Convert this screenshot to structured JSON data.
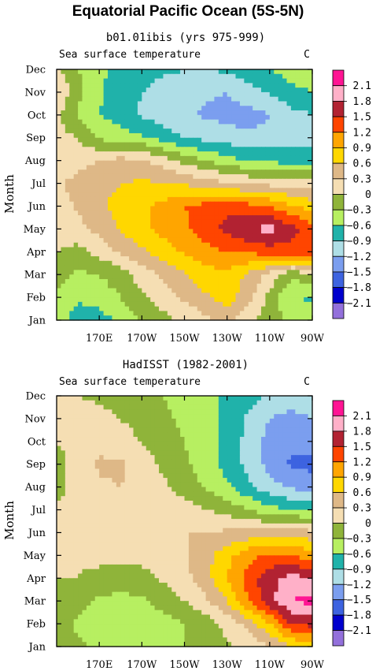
{
  "figure": {
    "title": "Equatorial Pacific Ocean (5S-5N)"
  },
  "chart_data": [
    {
      "type": "heatmap",
      "title": "b01.01ibis (yrs 975-999)",
      "variable": "Sea surface temperature",
      "units": "C",
      "ylabel": "Month",
      "xlabel": "",
      "x_ticks": [
        "170E",
        "170W",
        "150W",
        "130W",
        "110W",
        "90W"
      ],
      "x_tick_lon": [
        170,
        190,
        210,
        230,
        250,
        270
      ],
      "xlim": [
        150,
        270
      ],
      "y_ticks": [
        "Jan",
        "Feb",
        "Mar",
        "Apr",
        "May",
        "Jun",
        "Jul",
        "Aug",
        "Sep",
        "Oct",
        "Nov",
        "Dec"
      ],
      "lon": [
        150,
        160,
        170,
        180,
        190,
        200,
        210,
        220,
        230,
        240,
        250,
        260,
        270
      ],
      "z": [
        [
          -0.45,
          -0.75,
          -0.75,
          -0.5,
          -0.3,
          -0.1,
          0.05,
          0.25,
          0.4,
          0.1,
          -0.2,
          -0.35,
          -0.4
        ],
        [
          -0.35,
          -0.55,
          -0.45,
          -0.3,
          -0.05,
          0.15,
          0.35,
          0.55,
          0.75,
          0.4,
          -0.1,
          -0.6,
          -0.65
        ],
        [
          -0.2,
          -0.35,
          -0.3,
          -0.15,
          0.15,
          0.35,
          0.55,
          0.8,
          0.8,
          0.55,
          0.2,
          -0.2,
          -0.1
        ],
        [
          0.0,
          -0.1,
          0.1,
          0.35,
          0.55,
          0.75,
          0.95,
          1.1,
          1.2,
          1.25,
          1.35,
          1.4,
          1.45
        ],
        [
          0.1,
          0.2,
          0.4,
          0.65,
          0.85,
          1.0,
          1.15,
          1.35,
          1.6,
          1.8,
          1.9,
          1.6,
          1.3
        ],
        [
          0.15,
          0.35,
          0.55,
          0.7,
          0.85,
          1.0,
          1.2,
          1.3,
          1.4,
          1.3,
          1.2,
          0.95,
          0.75
        ],
        [
          0.25,
          0.4,
          0.5,
          0.6,
          0.65,
          0.6,
          0.55,
          0.45,
          0.35,
          0.25,
          0.2,
          0.2,
          0.2
        ],
        [
          0.05,
          0.2,
          0.3,
          0.4,
          0.35,
          0.15,
          -0.1,
          -0.3,
          -0.5,
          -0.6,
          -0.65,
          -0.75,
          -0.75
        ],
        [
          0.1,
          0.0,
          -0.35,
          -0.45,
          -0.55,
          -0.75,
          -0.9,
          -1.0,
          -1.05,
          -1.1,
          -1.1,
          -1.05,
          -1.0
        ],
        [
          0.1,
          -0.35,
          -0.6,
          -0.75,
          -0.95,
          -1.05,
          -1.15,
          -1.25,
          -1.3,
          -1.35,
          -1.2,
          -1.0,
          -0.9
        ],
        [
          0.3,
          -0.2,
          -0.55,
          -0.75,
          -0.9,
          -1.0,
          -1.05,
          -1.15,
          -1.2,
          -1.0,
          -0.85,
          -0.7,
          -0.6
        ],
        [
          0.1,
          -0.3,
          -0.55,
          -0.7,
          -0.8,
          -0.85,
          -0.9,
          -0.9,
          -0.85,
          -0.75,
          -0.6,
          -0.45,
          -0.35
        ]
      ]
    },
    {
      "type": "heatmap",
      "title": "HadISST (1982-2001)",
      "variable": "Sea surface temperature",
      "units": "C",
      "ylabel": "Month",
      "xlabel": "",
      "x_ticks": [
        "170E",
        "170W",
        "150W",
        "130W",
        "110W",
        "90W"
      ],
      "x_tick_lon": [
        170,
        190,
        210,
        230,
        250,
        270
      ],
      "xlim": [
        150,
        270
      ],
      "y_ticks": [
        "Jan",
        "Feb",
        "Mar",
        "Apr",
        "May",
        "Jun",
        "Jul",
        "Aug",
        "Sep",
        "Oct",
        "Nov",
        "Dec"
      ],
      "lon": [
        150,
        160,
        170,
        180,
        190,
        200,
        210,
        220,
        230,
        240,
        250,
        260,
        270
      ],
      "z": [
        [
          -0.05,
          -0.25,
          -0.35,
          -0.4,
          -0.4,
          -0.35,
          -0.3,
          -0.2,
          -0.05,
          0.1,
          0.3,
          0.6,
          0.8
        ],
        [
          -0.15,
          -0.35,
          -0.45,
          -0.5,
          -0.45,
          -0.4,
          -0.3,
          -0.15,
          0.1,
          0.4,
          0.9,
          1.5,
          1.6
        ],
        [
          -0.1,
          -0.2,
          -0.35,
          -0.4,
          -0.35,
          -0.2,
          0.0,
          0.25,
          0.6,
          1.2,
          1.7,
          2.1,
          2.2
        ],
        [
          0.0,
          0.0,
          -0.1,
          -0.15,
          -0.1,
          0.05,
          0.2,
          0.5,
          0.9,
          1.35,
          1.7,
          1.9,
          1.8
        ],
        [
          0.0,
          0.05,
          0.1,
          0.1,
          0.1,
          0.15,
          0.25,
          0.5,
          0.8,
          1.1,
          1.25,
          1.25,
          1.0
        ],
        [
          0.0,
          0.1,
          0.2,
          0.25,
          0.3,
          0.3,
          0.3,
          0.3,
          0.35,
          0.4,
          0.45,
          0.45,
          0.4
        ],
        [
          0.05,
          0.15,
          0.25,
          0.3,
          0.3,
          0.25,
          0.15,
          0.0,
          -0.1,
          -0.3,
          -0.5,
          -0.6,
          -0.65
        ],
        [
          -0.1,
          0.1,
          0.25,
          0.3,
          0.2,
          0.05,
          -0.15,
          -0.35,
          -0.55,
          -0.85,
          -1.1,
          -1.25,
          -1.3
        ],
        [
          -0.1,
          0.1,
          0.35,
          0.35,
          0.15,
          -0.05,
          -0.25,
          -0.45,
          -0.7,
          -1.0,
          -1.3,
          -1.55,
          -1.6
        ],
        [
          0.0,
          0.1,
          0.2,
          0.1,
          0.0,
          -0.15,
          -0.3,
          -0.45,
          -0.7,
          -1.0,
          -1.3,
          -1.4,
          -1.4
        ],
        [
          0.05,
          0.05,
          0.1,
          0.0,
          -0.1,
          -0.25,
          -0.35,
          -0.5,
          -0.7,
          -0.95,
          -1.2,
          -1.3,
          -1.2
        ],
        [
          0.05,
          0.0,
          -0.05,
          -0.15,
          -0.2,
          -0.3,
          -0.4,
          -0.5,
          -0.65,
          -0.8,
          -0.95,
          -1.0,
          -0.9
        ]
      ]
    }
  ],
  "legend": {
    "labels": [
      "2.1",
      "1.8",
      "1.5",
      "1.2",
      "0.9",
      "0.6",
      "0.3",
      "0",
      "−0.3",
      "−0.6",
      "−0.9",
      "−1.2",
      "−1.5",
      "−1.8",
      "−2.1"
    ],
    "levels": [
      2.1,
      1.8,
      1.5,
      1.2,
      0.9,
      0.6,
      0.3,
      0,
      -0.3,
      -0.6,
      -0.9,
      -1.2,
      -1.5,
      -1.8,
      -2.1
    ],
    "colors": [
      "#ff1493",
      "#ffb0c8",
      "#b22232",
      "#ff4500",
      "#ffa500",
      "#ffd700",
      "#deb887",
      "#f5deb3",
      "#8fb43a",
      "#b7ef61",
      "#20b2aa",
      "#aedee6",
      "#7b9eef",
      "#3d63e0",
      "#0000cd",
      "#9370db"
    ]
  }
}
